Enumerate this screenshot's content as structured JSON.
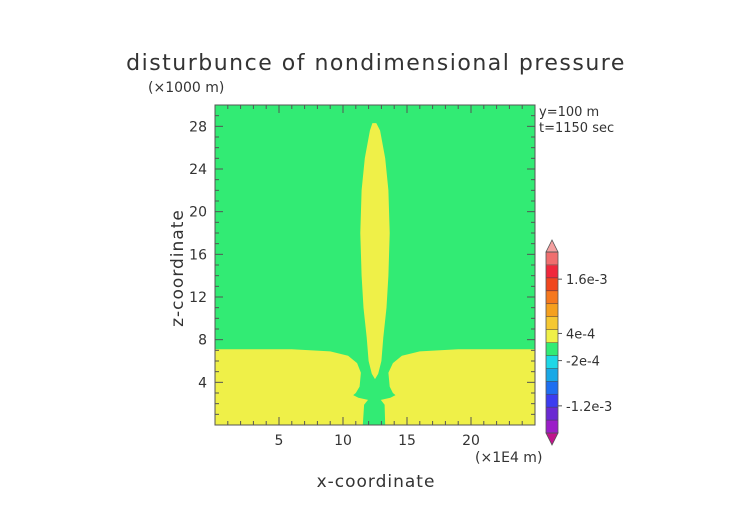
{
  "chart_data": {
    "type": "heatmap",
    "title": "disturbunce of nondimensional pressure",
    "y_unit": "(×1000 m)",
    "x_unit": "(×1E4 m)",
    "xlabel": "x-coordinate",
    "ylabel": "z-coordinate",
    "annotations": [
      "y=100 m",
      "t=1150 sec"
    ],
    "xlim": [
      0,
      25
    ],
    "ylim": [
      0,
      30
    ],
    "x_ticks": [
      5,
      10,
      15,
      20
    ],
    "y_ticks": [
      4,
      8,
      12,
      16,
      20,
      24,
      28
    ],
    "grid": false,
    "background_color": "#32eb74",
    "region_color": "#eff048",
    "colorbar": {
      "placement": "right",
      "labels": [
        {
          "text": "1.6e-3",
          "value": 0.0016
        },
        {
          "text": "4e-4",
          "value": 0.0004
        },
        {
          "text": "-2e-4",
          "value": -0.0002
        },
        {
          "text": "-1.2e-3",
          "value": -0.0012
        }
      ],
      "colors": [
        "#c0148c",
        "#9b1ec8",
        "#6a2ad2",
        "#3c3cf0",
        "#1e6ef0",
        "#19a8e6",
        "#1ed7e6",
        "#32eb74",
        "#eff048",
        "#f5c832",
        "#f5a01e",
        "#f5781e",
        "#f0461e",
        "#f0283c",
        "#f06e6e",
        "#f4a0a0"
      ]
    },
    "shapes": {
      "plume": [
        [
          12.3,
          28.3
        ],
        [
          12.1,
          27.6
        ],
        [
          11.7,
          25
        ],
        [
          11.45,
          22
        ],
        [
          11.35,
          18
        ],
        [
          11.45,
          14
        ],
        [
          11.6,
          11
        ],
        [
          11.85,
          8.2
        ],
        [
          12.0,
          6.0
        ],
        [
          12.25,
          4.8
        ],
        [
          12.5,
          4.3
        ],
        [
          12.75,
          4.8
        ],
        [
          13.0,
          6.0
        ],
        [
          13.15,
          8.2
        ],
        [
          13.4,
          11
        ],
        [
          13.55,
          14
        ],
        [
          13.65,
          18
        ],
        [
          13.55,
          22
        ],
        [
          13.3,
          25
        ],
        [
          12.9,
          27.6
        ],
        [
          12.6,
          28.3
        ]
      ],
      "left_base": [
        [
          0,
          0
        ],
        [
          0,
          7.1
        ],
        [
          6,
          7.1
        ],
        [
          9,
          6.9
        ],
        [
          10.4,
          6.5
        ],
        [
          11.1,
          5.8
        ],
        [
          11.4,
          4.9
        ],
        [
          11.3,
          3.6
        ],
        [
          11.0,
          3.0
        ],
        [
          10.8,
          2.8
        ],
        [
          11.2,
          2.55
        ],
        [
          11.95,
          2.35
        ],
        [
          11.65,
          1.9
        ],
        [
          11.55,
          0
        ]
      ],
      "right_base": [
        [
          13.3,
          0
        ],
        [
          13.25,
          1.9
        ],
        [
          12.95,
          2.35
        ],
        [
          13.7,
          2.55
        ],
        [
          14.1,
          2.8
        ],
        [
          13.9,
          3.0
        ],
        [
          13.65,
          3.6
        ],
        [
          13.55,
          4.9
        ],
        [
          13.9,
          5.8
        ],
        [
          14.6,
          6.5
        ],
        [
          16,
          6.9
        ],
        [
          19,
          7.1
        ],
        [
          25,
          7.1
        ],
        [
          25,
          0
        ]
      ]
    }
  }
}
